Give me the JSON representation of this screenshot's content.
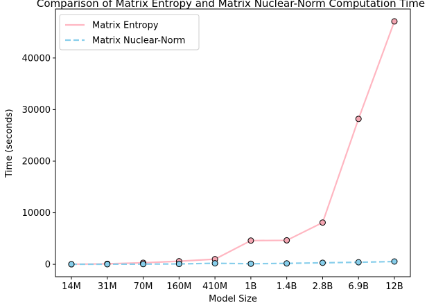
{
  "chart_data": {
    "type": "line",
    "title": "Comparison of Matrix Entropy and Matrix Nuclear-Norm Computation Time",
    "xlabel": "Model Size",
    "ylabel": "Time (seconds)",
    "categories": [
      "14M",
      "31M",
      "70M",
      "160M",
      "410M",
      "1B",
      "1.4B",
      "2.8B",
      "6.9B",
      "12B"
    ],
    "ylim": [
      -2400,
      49500
    ],
    "yticks": [
      0,
      10000,
      20000,
      30000,
      40000
    ],
    "grid": false,
    "legend_position": "top-left",
    "series": [
      {
        "name": "Matrix Entropy",
        "color": "#ffb6c1",
        "line_style": "solid",
        "marker_color": "#f4a6b2",
        "values": [
          20,
          100,
          300,
          600,
          1000,
          4600,
          4650,
          8100,
          28200,
          47100
        ]
      },
      {
        "name": "Matrix Nuclear-Norm",
        "color": "#87ceeb",
        "line_style": "dashed",
        "marker_color": "#87ceeb",
        "values": [
          10,
          20,
          40,
          80,
          200,
          120,
          180,
          300,
          400,
          550
        ]
      }
    ]
  }
}
